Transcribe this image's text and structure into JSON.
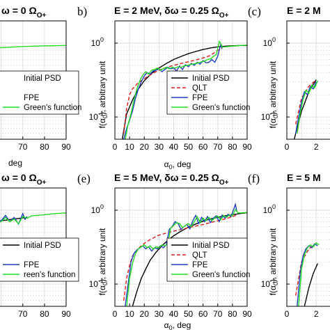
{
  "figure": {
    "panels": [
      {
        "id": "a",
        "label": "",
        "title_main": "ω = 0 Ω",
        "title_sub": "O+",
        "xlabel": "deg",
        "ylabel": "",
        "xticks": [
          70,
          80,
          90
        ],
        "show_xticklabels": true,
        "legend": [
          "Initial PSD",
          "",
          "FPE",
          "Green's function"
        ],
        "show_yticklabels": false
      },
      {
        "id": "b",
        "label": "b)",
        "title_main": "E = 2 MeV, δω = 0.25 Ω",
        "title_sub": "O+",
        "xlabel": "α",
        "xlabel_sub": "0",
        "xlabel_tail": ", deg",
        "ylabel": "f(α",
        "ylabel_sub": "0",
        "ylabel_tail": "), arbitrary unit",
        "xticks": [
          0,
          10,
          20,
          30,
          40,
          50,
          60,
          70,
          80,
          90
        ],
        "yticks": [
          "10",
          "10"
        ],
        "ytick_exps": [
          "0",
          "-1"
        ],
        "legend": [
          "Initial PSD",
          "QLT",
          "FPE",
          "Green's function"
        ]
      },
      {
        "id": "c",
        "label": "(c)",
        "title_main": "E = 2 M",
        "title_sub": "",
        "ylabel": "f(α",
        "ylabel_sub": "0",
        "ylabel_tail": "), arbitrary unit",
        "yticks": [
          "10",
          "10"
        ],
        "ytick_exps": [
          "0",
          "-1"
        ],
        "xticks_text": [
          "0",
          "2"
        ]
      },
      {
        "id": "d",
        "label": "",
        "title_main": "ω = 0 Ω",
        "title_sub": "O+",
        "xlabel": "deg",
        "legend": [
          "Initial PSD",
          "",
          "FPE",
          "reen's function"
        ],
        "xticks": [
          70,
          80,
          90
        ]
      },
      {
        "id": "e",
        "label": "(e)",
        "title_main": "E = 5 MeV, δω = 0.25 Ω",
        "title_sub": "O+",
        "xlabel": "α",
        "xlabel_sub": "0",
        "xlabel_tail": ", deg",
        "ylabel": "f(α",
        "ylabel_sub": "0",
        "ylabel_tail": "), arbitrary unit",
        "xticks": [
          0,
          10,
          20,
          30,
          40,
          50,
          60,
          70,
          80,
          90
        ],
        "yticks": [
          "10",
          "10"
        ],
        "ytick_exps": [
          "0",
          "-1"
        ],
        "legend": [
          "Initial PSD",
          "QLT",
          "FPE",
          "Green's function"
        ]
      },
      {
        "id": "f",
        "label": "(f)",
        "title_main": "E = 5 M",
        "title_sub": "",
        "ylabel": "f(α",
        "ylabel_sub": "0",
        "ylabel_tail": "), arbitrary unit",
        "yticks": [
          "10",
          "10"
        ],
        "ytick_exps": [
          "0",
          "-1"
        ],
        "xticks_text": [
          "0",
          "2"
        ]
      }
    ]
  },
  "chart_data": [
    {
      "type": "line",
      "panel": "b",
      "xlim": [
        0,
        90
      ],
      "ylim": [
        0.05,
        2
      ],
      "yscale": "log",
      "grid": true,
      "legend_position": "bottom-right",
      "series": [
        {
          "name": "Initial PSD",
          "color": "#000000",
          "style": "solid",
          "x": [
            5,
            8,
            12,
            16,
            20,
            25,
            30,
            35,
            40,
            45,
            50,
            55,
            60,
            65,
            70,
            75,
            80,
            85,
            90
          ],
          "y": [
            0.05,
            0.11,
            0.17,
            0.24,
            0.31,
            0.39,
            0.46,
            0.53,
            0.6,
            0.66,
            0.72,
            0.77,
            0.82,
            0.86,
            0.89,
            0.91,
            0.92,
            0.93,
            0.93
          ]
        },
        {
          "name": "QLT",
          "color": "#e31a1c",
          "style": "dashed",
          "x": [
            6,
            8,
            10,
            12,
            15,
            18,
            22,
            26,
            30,
            35,
            40,
            45,
            50,
            55,
            60,
            65,
            70,
            73
          ],
          "y": [
            0.06,
            0.13,
            0.2,
            0.24,
            0.28,
            0.31,
            0.35,
            0.39,
            0.43,
            0.47,
            0.5,
            0.53,
            0.56,
            0.59,
            0.63,
            0.68,
            0.8,
            0.85
          ]
        },
        {
          "name": "FPE",
          "color": "#1f3fbf",
          "style": "solid",
          "x": [
            6,
            8,
            10,
            12,
            14,
            16,
            18,
            20,
            22,
            24,
            26,
            28,
            30,
            32,
            34,
            36,
            38,
            40,
            42,
            44,
            46,
            48,
            50,
            52,
            54,
            56,
            58,
            60,
            62,
            64,
            66,
            68,
            70,
            71,
            72,
            73
          ],
          "y": [
            0.05,
            0.07,
            0.09,
            0.12,
            0.18,
            0.24,
            0.3,
            0.36,
            0.4,
            0.38,
            0.42,
            0.43,
            0.45,
            0.41,
            0.44,
            0.47,
            0.45,
            0.46,
            0.42,
            0.49,
            0.44,
            0.51,
            0.48,
            0.53,
            0.5,
            0.55,
            0.52,
            0.58,
            0.54,
            0.55,
            0.6,
            0.55,
            0.67,
            0.8,
            0.95,
            0.85
          ]
        },
        {
          "name": "Green's function",
          "color": "#22dd22",
          "style": "solid",
          "x": [
            7,
            9,
            11,
            13,
            15,
            17,
            19,
            21,
            23,
            25,
            27,
            29,
            31,
            33,
            35,
            37,
            39,
            41,
            43,
            45,
            47,
            49,
            51,
            53,
            55,
            57,
            59,
            61,
            63,
            65,
            67,
            69,
            71,
            72,
            73,
            75,
            80,
            85,
            90
          ],
          "y": [
            0.05,
            0.08,
            0.11,
            0.17,
            0.24,
            0.31,
            0.37,
            0.41,
            0.38,
            0.43,
            0.44,
            0.46,
            0.43,
            0.45,
            0.47,
            0.45,
            0.47,
            0.46,
            0.48,
            0.47,
            0.49,
            0.5,
            0.51,
            0.52,
            0.53,
            0.54,
            0.56,
            0.57,
            0.6,
            0.61,
            0.66,
            0.7,
            1.05,
            1.0,
            0.88,
            0.89,
            0.91,
            0.93,
            0.94
          ]
        }
      ]
    },
    {
      "type": "line",
      "panel": "e",
      "xlim": [
        0,
        90
      ],
      "ylim": [
        0.05,
        2
      ],
      "yscale": "log",
      "grid": true,
      "legend_position": "bottom-right",
      "series": [
        {
          "name": "Initial PSD",
          "color": "#000000",
          "style": "solid",
          "x": [
            12,
            15,
            18,
            21,
            24,
            28,
            32,
            36,
            40,
            45,
            50,
            55,
            60,
            65,
            70,
            75,
            80,
            85,
            90
          ],
          "y": [
            0.05,
            0.08,
            0.12,
            0.16,
            0.21,
            0.27,
            0.33,
            0.39,
            0.45,
            0.52,
            0.59,
            0.65,
            0.71,
            0.76,
            0.8,
            0.84,
            0.87,
            0.9,
            0.93
          ]
        },
        {
          "name": "QLT",
          "color": "#e31a1c",
          "style": "dashed",
          "x": [
            6,
            8,
            10,
            12,
            15,
            18,
            22,
            26,
            30,
            35,
            40,
            45,
            50,
            55,
            60,
            65,
            70,
            75,
            80,
            83
          ],
          "y": [
            0.06,
            0.12,
            0.18,
            0.24,
            0.29,
            0.33,
            0.38,
            0.42,
            0.46,
            0.49,
            0.52,
            0.55,
            0.58,
            0.61,
            0.64,
            0.68,
            0.72,
            0.76,
            0.82,
            0.86
          ]
        },
        {
          "name": "FPE",
          "color": "#1f3fbf",
          "style": "solid",
          "x": [
            7,
            9,
            11,
            13,
            15,
            17,
            19,
            21,
            23,
            25,
            27,
            29,
            31,
            33,
            35,
            37,
            39,
            41,
            43,
            45,
            47,
            49,
            51,
            53,
            55,
            57,
            59,
            61,
            63,
            65,
            67,
            69,
            71,
            73,
            75,
            77,
            79,
            81,
            82,
            83
          ],
          "y": [
            0.05,
            0.1,
            0.2,
            0.26,
            0.29,
            0.31,
            0.33,
            0.3,
            0.32,
            0.28,
            0.31,
            0.3,
            0.33,
            0.31,
            0.34,
            0.55,
            0.6,
            0.7,
            0.66,
            0.55,
            0.6,
            0.64,
            0.56,
            0.72,
            0.85,
            0.66,
            0.8,
            0.7,
            0.82,
            0.68,
            0.78,
            0.84,
            0.7,
            0.86,
            0.78,
            0.88,
            0.82,
            1.05,
            1.2,
            0.95
          ]
        },
        {
          "name": "Green's function",
          "color": "#22dd22",
          "style": "solid",
          "x": [
            8,
            10,
            12,
            14,
            16,
            18,
            20,
            22,
            24,
            26,
            28,
            30,
            32,
            34,
            36,
            38,
            40,
            42,
            44,
            46,
            48,
            50,
            52,
            54,
            56,
            58,
            60,
            62,
            64,
            66,
            68,
            70,
            72,
            74,
            76,
            78,
            80,
            82,
            84,
            86,
            88,
            90
          ],
          "y": [
            0.05,
            0.12,
            0.19,
            0.26,
            0.3,
            0.32,
            0.34,
            0.31,
            0.33,
            0.3,
            0.32,
            0.31,
            0.34,
            0.33,
            0.35,
            0.57,
            0.62,
            0.68,
            0.66,
            0.58,
            0.62,
            0.66,
            0.6,
            0.7,
            0.82,
            0.68,
            0.78,
            0.72,
            0.8,
            0.72,
            0.79,
            0.83,
            0.74,
            0.85,
            0.8,
            0.87,
            0.84,
            1.02,
            0.92,
            0.92,
            0.93,
            0.93
          ]
        }
      ]
    },
    {
      "type": "line",
      "panel": "a",
      "xlim": [
        0,
        90
      ],
      "ylim": [
        0.05,
        2
      ],
      "yscale": "log",
      "grid": true,
      "series": [
        {
          "name": "Green's function",
          "color": "#22dd22",
          "style": "solid",
          "x": [
            0,
            10,
            20,
            30,
            40,
            50,
            60,
            70,
            80,
            90
          ],
          "y": [
            0.58,
            0.64,
            0.7,
            0.75,
            0.8,
            0.84,
            0.87,
            0.9,
            0.92,
            0.93
          ]
        }
      ]
    },
    {
      "type": "line",
      "panel": "d",
      "xlim": [
        0,
        90
      ],
      "ylim": [
        0.05,
        2
      ],
      "yscale": "log",
      "grid": true,
      "series": [
        {
          "name": "Initial PSD",
          "color": "#000000",
          "style": "solid",
          "x": [
            0,
            20,
            40,
            60,
            72
          ],
          "y": [
            0.44,
            0.52,
            0.62,
            0.72,
            0.8
          ]
        },
        {
          "name": "FPE",
          "color": "#1f3fbf",
          "style": "solid",
          "x": [
            0,
            10,
            20,
            30,
            40,
            50,
            55,
            60,
            62,
            64,
            66,
            68,
            70,
            71,
            72
          ],
          "y": [
            0.46,
            0.52,
            0.58,
            0.62,
            0.66,
            0.7,
            0.74,
            0.72,
            0.85,
            0.7,
            0.8,
            0.65,
            0.9,
            0.75,
            0.82
          ]
        },
        {
          "name": "Green's function",
          "color": "#22dd22",
          "style": "solid",
          "x": [
            0,
            10,
            20,
            30,
            40,
            50,
            55,
            60,
            62,
            64,
            66,
            68,
            70,
            72,
            74,
            80,
            85,
            90
          ],
          "y": [
            0.45,
            0.5,
            0.56,
            0.6,
            0.64,
            0.68,
            0.72,
            0.7,
            0.8,
            0.7,
            0.76,
            0.66,
            0.82,
            0.78,
            0.84,
            0.87,
            0.9,
            0.92
          ]
        }
      ]
    },
    {
      "type": "line",
      "panel": "c",
      "xlim": [
        0,
        90
      ],
      "ylim": [
        0.05,
        2
      ],
      "yscale": "log",
      "grid": true,
      "series": [
        {
          "name": "Initial PSD",
          "color": "#000000",
          "style": "solid",
          "x": [
            5,
            10,
            15,
            20
          ],
          "y": [
            0.05,
            0.12,
            0.22,
            0.32
          ]
        },
        {
          "name": "QLT",
          "color": "#e31a1c",
          "style": "dashed",
          "x": [
            6,
            10,
            15,
            20
          ],
          "y": [
            0.08,
            0.18,
            0.26,
            0.32
          ]
        },
        {
          "name": "FPE",
          "color": "#1f3fbf",
          "style": "solid",
          "x": [
            6,
            8,
            10,
            12,
            14,
            16,
            18,
            20
          ],
          "y": [
            0.06,
            0.1,
            0.16,
            0.22,
            0.2,
            0.26,
            0.24,
            0.3
          ]
        },
        {
          "name": "Green's function",
          "color": "#22dd22",
          "style": "solid",
          "x": [
            7,
            9,
            11,
            13,
            15,
            17,
            19,
            21
          ],
          "y": [
            0.06,
            0.11,
            0.17,
            0.23,
            0.21,
            0.27,
            0.25,
            0.31
          ]
        }
      ]
    },
    {
      "type": "line",
      "panel": "f",
      "xlim": [
        0,
        90
      ],
      "ylim": [
        0.05,
        2
      ],
      "yscale": "log",
      "grid": true,
      "series": [
        {
          "name": "Initial PSD",
          "color": "#000000",
          "style": "solid",
          "x": [
            12,
            15,
            18,
            21
          ],
          "y": [
            0.05,
            0.09,
            0.14,
            0.19
          ]
        },
        {
          "name": "QLT",
          "color": "#e31a1c",
          "style": "dashed",
          "x": [
            6,
            10,
            15,
            20
          ],
          "y": [
            0.07,
            0.2,
            0.3,
            0.36
          ]
        },
        {
          "name": "FPE",
          "color": "#1f3fbf",
          "style": "solid",
          "x": [
            7,
            9,
            11,
            13,
            15,
            17,
            19,
            21
          ],
          "y": [
            0.05,
            0.14,
            0.24,
            0.3,
            0.33,
            0.31,
            0.35,
            0.33
          ]
        },
        {
          "name": "Green's function",
          "color": "#22dd22",
          "style": "solid",
          "x": [
            8,
            10,
            12,
            14,
            16,
            18,
            20,
            22
          ],
          "y": [
            0.05,
            0.16,
            0.25,
            0.31,
            0.34,
            0.32,
            0.36,
            0.34
          ]
        }
      ]
    }
  ]
}
